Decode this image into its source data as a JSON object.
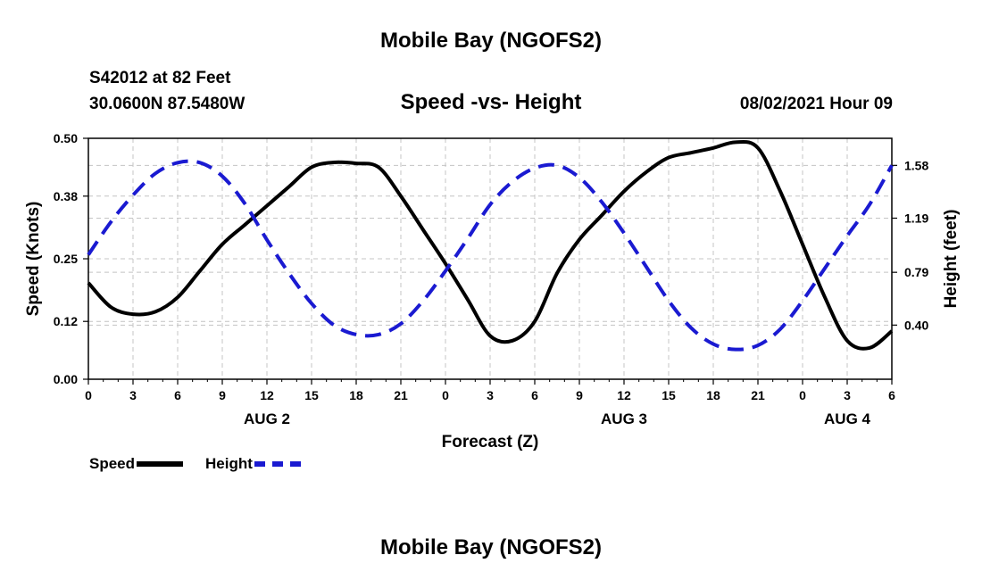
{
  "page": {
    "title_top": "Mobile Bay (NGOFS2)",
    "title_bottom": "Mobile Bay (NGOFS2)",
    "station": "S42012 at 82 Feet",
    "coordinates": "30.0600N  87.5480W",
    "subtitle": "Speed -vs- Height",
    "timestamp": "08/02/2021 Hour 09"
  },
  "chart_data": {
    "type": "line",
    "title": "Speed -vs- Height",
    "xlabel": "Forecast (Z)",
    "ylabel": "Speed (Knots)",
    "y2label": "Height (feet)",
    "x_unit": "hours from 08/02/2021 00Z",
    "xlim": [
      0,
      54
    ],
    "ylim": [
      0,
      0.5
    ],
    "y2lim": [
      0.0,
      1.78
    ],
    "x_ticks": [
      0,
      3,
      6,
      9,
      12,
      15,
      18,
      21,
      24,
      27,
      30,
      33,
      36,
      39,
      42,
      45,
      48,
      51,
      54
    ],
    "x_tick_labels": [
      "0",
      "3",
      "6",
      "9",
      "12",
      "15",
      "18",
      "21",
      "0",
      "3",
      "6",
      "9",
      "12",
      "15",
      "18",
      "21",
      "0",
      "3",
      "6"
    ],
    "date_labels": [
      {
        "label": "AUG 2",
        "x": 12
      },
      {
        "label": "AUG 3",
        "x": 36
      },
      {
        "label": "AUG 4",
        "x": 51
      }
    ],
    "y_ticks": [
      0.0,
      0.12,
      0.25,
      0.38,
      0.5
    ],
    "y_tick_labels": [
      "0.00",
      "0.12",
      "0.25",
      "0.38",
      "0.50"
    ],
    "y2_ticks": [
      0.4,
      0.79,
      1.19,
      1.58
    ],
    "y2_tick_labels": [
      "0.40",
      "0.79",
      "1.19",
      "1.58"
    ],
    "grid": true,
    "legend_position": "bottom-left",
    "series": [
      {
        "name": "Speed",
        "axis": "left",
        "color": "#000000",
        "style": "solid",
        "x": [
          0,
          1.5,
          3,
          4.5,
          6,
          7.5,
          9,
          10.5,
          12,
          13.5,
          15,
          16.5,
          18,
          19.5,
          21,
          22.5,
          24,
          25.5,
          27,
          28.5,
          30,
          31.5,
          33,
          34.5,
          36,
          37.5,
          39,
          40.5,
          42,
          43.5,
          45,
          46.5,
          48,
          49.5,
          51,
          52.5,
          54
        ],
        "y": [
          0.2,
          0.15,
          0.135,
          0.14,
          0.17,
          0.225,
          0.28,
          0.32,
          0.36,
          0.4,
          0.44,
          0.45,
          0.448,
          0.44,
          0.38,
          0.31,
          0.24,
          0.165,
          0.09,
          0.08,
          0.12,
          0.22,
          0.29,
          0.34,
          0.39,
          0.43,
          0.46,
          0.47,
          0.48,
          0.492,
          0.48,
          0.39,
          0.28,
          0.17,
          0.08,
          0.065,
          0.1
        ]
      },
      {
        "name": "Height",
        "axis": "right",
        "color": "#1a1ad1",
        "style": "dashed",
        "x": [
          0,
          1.5,
          3,
          4.5,
          6,
          7.5,
          9,
          10.5,
          12,
          13.5,
          15,
          16.5,
          18,
          19.5,
          21,
          22.5,
          24,
          25.5,
          27,
          28.5,
          30,
          31.5,
          33,
          34.5,
          36,
          37.5,
          39,
          40.5,
          42,
          43.5,
          45,
          46.5,
          48,
          49.5,
          51,
          52.5,
          54
        ],
        "y": [
          0.92,
          1.16,
          1.36,
          1.52,
          1.6,
          1.6,
          1.5,
          1.3,
          1.03,
          0.78,
          0.56,
          0.4,
          0.33,
          0.33,
          0.41,
          0.58,
          0.8,
          1.04,
          1.29,
          1.46,
          1.56,
          1.58,
          1.49,
          1.31,
          1.08,
          0.83,
          0.58,
          0.38,
          0.26,
          0.22,
          0.25,
          0.37,
          0.58,
          0.82,
          1.06,
          1.29,
          1.58
        ]
      }
    ]
  }
}
